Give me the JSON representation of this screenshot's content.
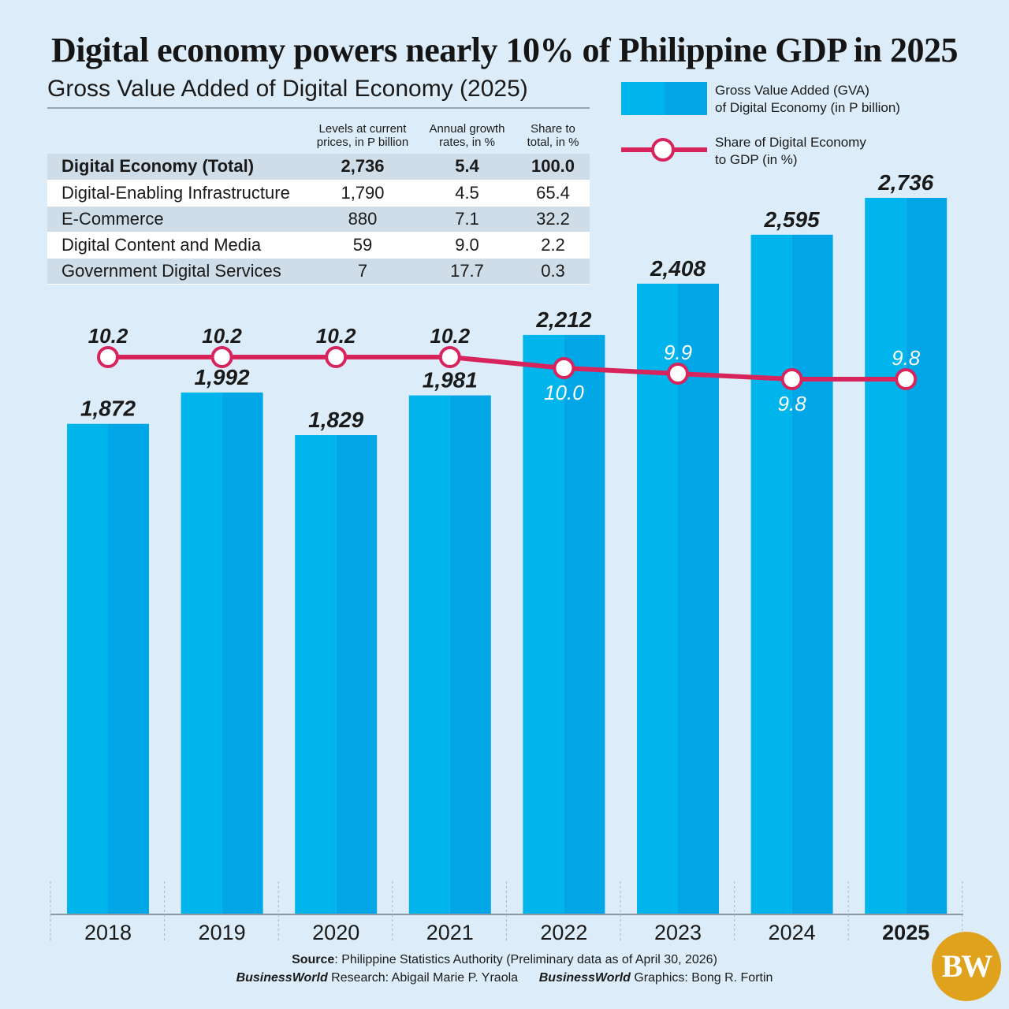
{
  "title": "Digital economy powers nearly 10% of Philippine GDP in 2025",
  "table": {
    "title": "Gross Value Added of Digital Economy (2025)",
    "headers": [
      "",
      "Levels at current prices, in P billion",
      "Annual growth rates, in %",
      "Share to total, in %"
    ],
    "rows": [
      {
        "name": "Digital Economy (Total)",
        "level": "2,736",
        "growth": "5.4",
        "share": "100.0"
      },
      {
        "name": "Digital-Enabling Infrastructure",
        "level": "1,790",
        "growth": "4.5",
        "share": "65.4"
      },
      {
        "name": "E-Commerce",
        "level": "880",
        "growth": "7.1",
        "share": "32.2"
      },
      {
        "name": "Digital Content and Media",
        "level": "59",
        "growth": "9.0",
        "share": "2.2"
      },
      {
        "name": "Government Digital Services",
        "level": "7",
        "growth": "17.7",
        "share": "0.3"
      }
    ]
  },
  "legend": {
    "bar_line1": "Gross Value Added (GVA)",
    "bar_line2a": "of Digital Economy",
    "bar_line2b": "(in P billion)",
    "line_line1": "Share of Digital Economy",
    "line_line2a": "to GDP",
    "line_line2b": "(in %)"
  },
  "chart_data": {
    "type": "bar",
    "title": "Digital economy powers nearly 10% of Philippine GDP in 2025",
    "categories": [
      "2018",
      "2019",
      "2020",
      "2021",
      "2022",
      "2023",
      "2024",
      "2025"
    ],
    "series": [
      {
        "name": "Gross Value Added (GVA) of Digital Economy (in P billion)",
        "type": "bar",
        "values": [
          1872,
          1992,
          1829,
          1981,
          2212,
          2408,
          2595,
          2736
        ],
        "labels": [
          "1,872",
          "1,992",
          "1,829",
          "1,981",
          "2,212",
          "2,408",
          "2,595",
          "2,736"
        ]
      },
      {
        "name": "Share of Digital Economy to GDP (in %)",
        "type": "line",
        "values": [
          10.2,
          10.2,
          10.2,
          10.2,
          10.0,
          9.9,
          9.8,
          9.8
        ],
        "labels": [
          "10.2",
          "10.2",
          "10.2",
          "10.2",
          "10.0",
          "9.9",
          "9.8",
          "9.8"
        ]
      }
    ],
    "ylim": [
      0,
      2736
    ],
    "colors": {
      "bar": "#00b5ec",
      "bar_shade": "#00a6e6",
      "line": "#d8245c",
      "marker_fill": "#ffffff"
    }
  },
  "footer": {
    "source_label": "Source",
    "source_text": ": Philippine Statistics Authority (Preliminary data as of April 30, 2026)",
    "research_brand": "BusinessWorld",
    "research_text": " Research: Abigail Marie P. Yraola",
    "graphics_brand": "BusinessWorld",
    "graphics_text": " Graphics: Bong R. Fortin"
  },
  "logo": "BW"
}
